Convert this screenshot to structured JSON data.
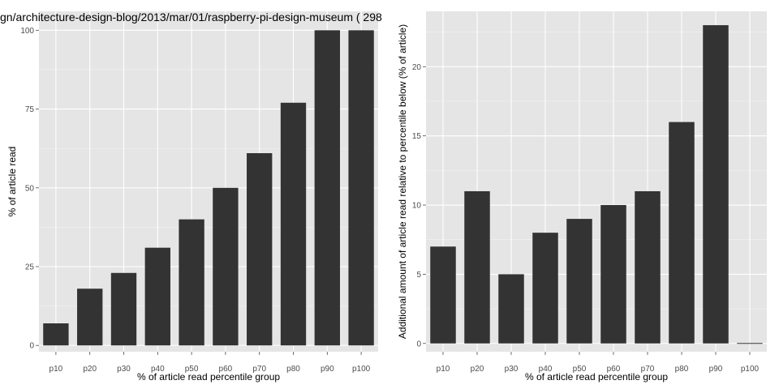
{
  "chart_data": [
    {
      "type": "bar",
      "title": "gn/architecture-design-blog/2013/mar/01/raspberry-pi-design-museum ( 298",
      "xlabel": "% of article read percentile group",
      "ylabel": "% of article read",
      "categories": [
        "p10",
        "p20",
        "p30",
        "p40",
        "p50",
        "p60",
        "p70",
        "p80",
        "p90",
        "p100"
      ],
      "values": [
        7,
        18,
        23,
        31,
        40,
        50,
        61,
        77,
        100,
        100
      ],
      "ylim": [
        -2,
        106
      ],
      "yticks": [
        0,
        25,
        50,
        75,
        100
      ],
      "bar_color": "#333333",
      "panel_color": "#e5e5e5",
      "grid": true
    },
    {
      "type": "bar",
      "title": "",
      "xlabel": "% of article read percentile group",
      "ylabel": "Additional amount of article read relative to percentile below (% of article)",
      "categories": [
        "p10",
        "p20",
        "p30",
        "p40",
        "p50",
        "p60",
        "p70",
        "p80",
        "p90",
        "p100"
      ],
      "values": [
        7,
        11,
        5,
        8,
        9,
        10,
        11,
        16,
        23,
        0
      ],
      "ylim": [
        -0.6,
        24
      ],
      "yticks": [
        0,
        5,
        10,
        15,
        20
      ],
      "bar_color": "#333333",
      "panel_color": "#e5e5e5",
      "grid": true
    }
  ]
}
